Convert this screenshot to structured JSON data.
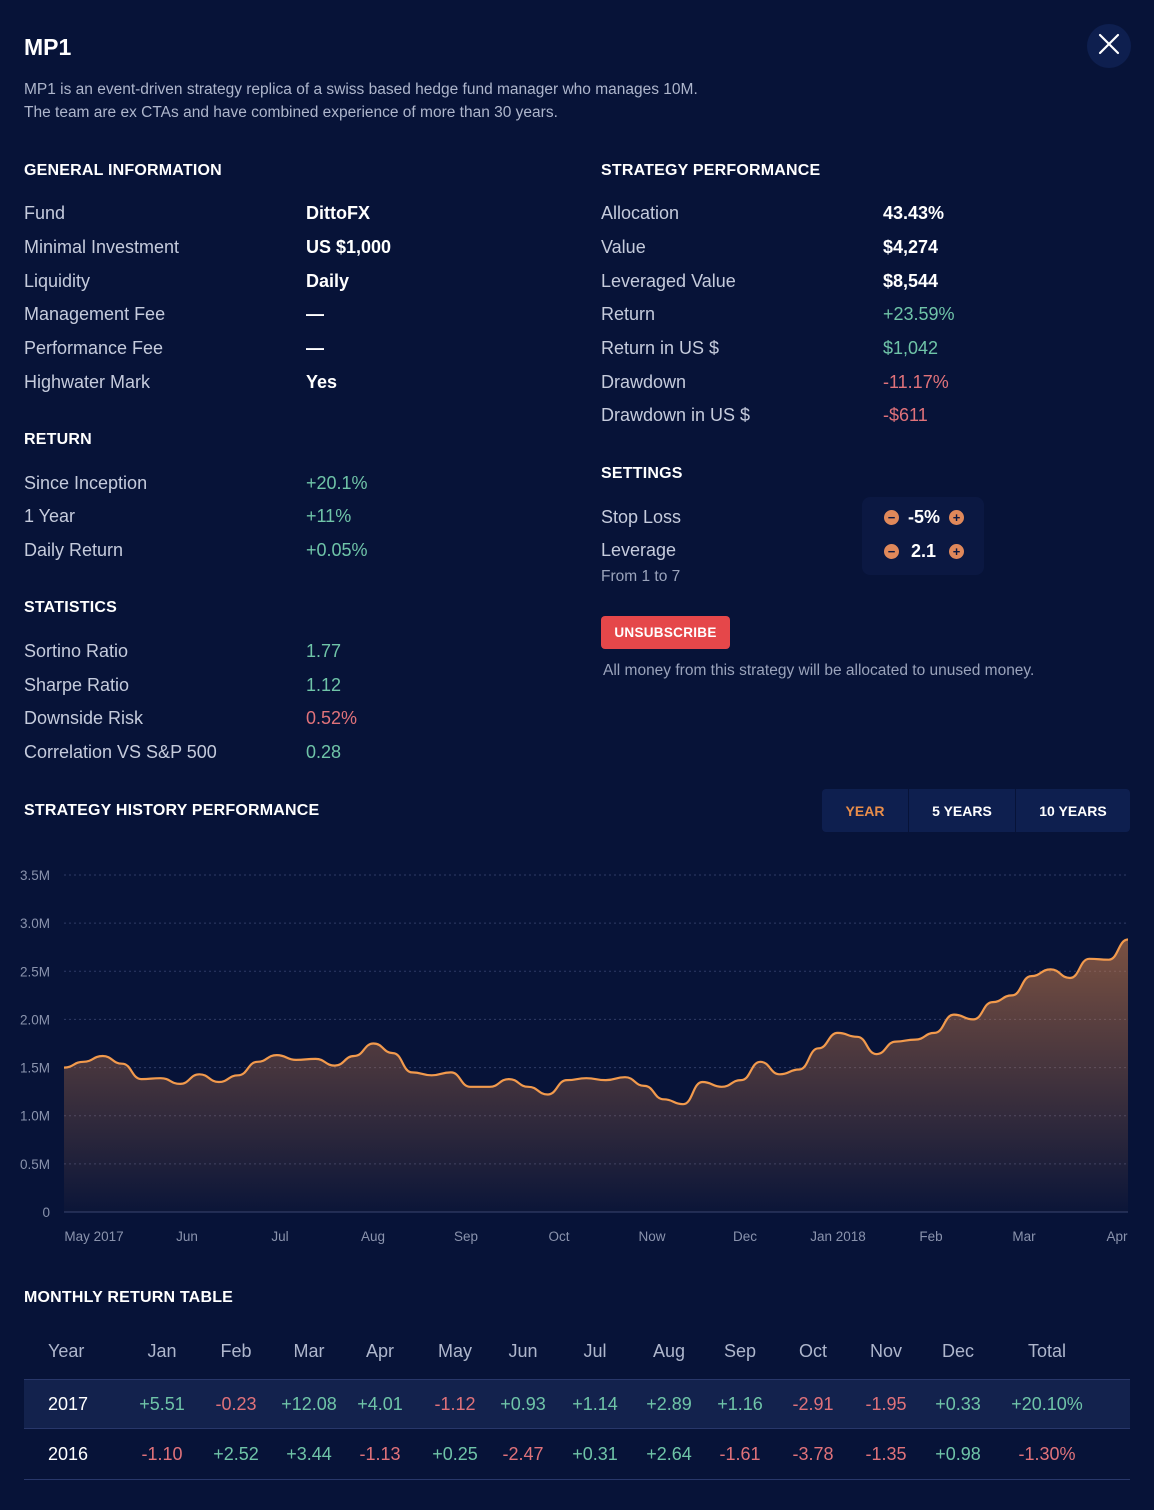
{
  "title": "MP1",
  "description": [
    "MP1 is an event-driven strategy replica of a swiss based hedge fund manager who manages 10M.",
    "The team are ex CTAs and have combined experience of more than 30 years."
  ],
  "general": {
    "heading": "GENERAL INFORMATION",
    "rows": [
      {
        "label": "Fund",
        "value": "DittoFX"
      },
      {
        "label": "Minimal Investment",
        "value": "US $1,000"
      },
      {
        "label": "Liquidity",
        "value": "Daily"
      },
      {
        "label": "Management Fee",
        "value": "—"
      },
      {
        "label": "Performance Fee",
        "value": "—"
      },
      {
        "label": "Highwater Mark",
        "value": "Yes"
      }
    ]
  },
  "return": {
    "heading": "RETURN",
    "rows": [
      {
        "label": "Since Inception",
        "value": "+20.1%"
      },
      {
        "label": "1 Year",
        "value": "+11%"
      },
      {
        "label": "Daily Return",
        "value": "+0.05%"
      }
    ]
  },
  "statistics": {
    "heading": "STATISTICS",
    "rows": [
      {
        "label": "Sortino Ratio",
        "value": "1.77"
      },
      {
        "label": "Sharpe Ratio",
        "value": "1.12"
      },
      {
        "label": "Downside Risk",
        "value": "0.52%"
      },
      {
        "label": "Correlation VS S&P 500",
        "value": "0.28"
      }
    ]
  },
  "performance": {
    "heading": "STRATEGY PERFORMANCE",
    "rows": [
      {
        "label": "Allocation",
        "value": "43.43%"
      },
      {
        "label": "Value",
        "value": "$4,274"
      },
      {
        "label": "Leveraged Value",
        "value": "$8,544"
      },
      {
        "label": "Return",
        "value": "+23.59%"
      },
      {
        "label": "Return in US $",
        "value": "$1,042"
      },
      {
        "label": "Drawdown",
        "value": "-11.17%"
      },
      {
        "label": "Drawdown in US $",
        "value": "-$611"
      }
    ]
  },
  "settings": {
    "heading": "SETTINGS",
    "stop_loss": {
      "label": "Stop Loss",
      "value": "-5%"
    },
    "leverage": {
      "label": "Leverage",
      "value": "2.1",
      "hint": "From 1 to 7"
    }
  },
  "unsubscribe": {
    "label": "UNSUBSCRIBE",
    "note": "All money from this strategy will be allocated to unused money."
  },
  "history": {
    "heading": "STRATEGY HISTORY PERFORMANCE",
    "tabs": [
      "YEAR",
      "5 YEARS",
      "10 YEARS"
    ],
    "active_tab": "YEAR"
  },
  "colors": {
    "background": "#071338",
    "positive": "#6fc4a8",
    "negative": "#e0727a",
    "accent": "#e88d4a",
    "danger": "#e5474a"
  },
  "icons": {
    "close": "close-icon",
    "minus": "minus-icon",
    "plus": "plus-icon"
  },
  "chart_data": {
    "type": "area",
    "title": "",
    "xlabel": "",
    "ylabel": "",
    "ylim": [
      0,
      3500000
    ],
    "yticks": [
      0,
      500000,
      1000000,
      1500000,
      2000000,
      2500000,
      3000000,
      3500000
    ],
    "ytick_labels": [
      "0",
      "0.5M",
      "1.0M",
      "1.5M",
      "2.0M",
      "2.5M",
      "3.0M",
      "3.5M"
    ],
    "xtick_labels": [
      "May 2017",
      "Jun",
      "Jul",
      "Aug",
      "Sep",
      "Oct",
      "Now",
      "Dec",
      "Jan 2018",
      "Feb",
      "Mar",
      "Apr"
    ],
    "grid": true,
    "x": [
      "May 2017",
      "",
      "",
      "",
      "",
      "Jun",
      "",
      "",
      "",
      "",
      "Jul",
      "",
      "",
      "",
      "",
      "Aug",
      "",
      "",
      "",
      "",
      "Sep",
      "",
      "",
      "",
      "",
      "Oct",
      "",
      "",
      "",
      "",
      "Now",
      "",
      "",
      "",
      "",
      "Dec",
      "",
      "",
      "",
      "",
      "Jan 2018",
      "",
      "",
      "",
      "",
      "Feb",
      "",
      "",
      "",
      "",
      "Mar",
      "",
      "",
      "",
      "",
      "Apr"
    ],
    "values": [
      1500000,
      1560000,
      1620000,
      1540000,
      1380000,
      1390000,
      1330000,
      1430000,
      1350000,
      1420000,
      1560000,
      1630000,
      1580000,
      1590000,
      1520000,
      1620000,
      1750000,
      1650000,
      1450000,
      1420000,
      1450000,
      1300000,
      1300000,
      1380000,
      1300000,
      1220000,
      1370000,
      1390000,
      1370000,
      1400000,
      1310000,
      1170000,
      1120000,
      1350000,
      1300000,
      1370000,
      1560000,
      1430000,
      1480000,
      1700000,
      1860000,
      1820000,
      1640000,
      1770000,
      1790000,
      1860000,
      2050000,
      2000000,
      2180000,
      2250000,
      2450000,
      2520000,
      2430000,
      2630000,
      2620000,
      2830000
    ]
  },
  "monthly": {
    "heading": "MONTHLY RETURN TABLE",
    "columns": [
      "Year",
      "Jan",
      "Feb",
      "Mar",
      "Apr",
      "May",
      "Jun",
      "Jul",
      "Aug",
      "Sep",
      "Oct",
      "Nov",
      "Dec",
      "Total"
    ],
    "rows": [
      {
        "year": "2017",
        "cells": [
          "+5.51",
          "-0.23",
          "+12.08",
          "+4.01",
          "-1.12",
          "+0.93",
          "+1.14",
          "+2.89",
          "+1.16",
          "-2.91",
          "-1.95",
          "+0.33",
          "+20.10%"
        ]
      },
      {
        "year": "2016",
        "cells": [
          "-1.10",
          "+2.52",
          "+3.44",
          "-1.13",
          "+0.25",
          "-2.47",
          "+0.31",
          "+2.64",
          "-1.61",
          "-3.78",
          "-1.35",
          "+0.98",
          "-1.30%"
        ]
      }
    ]
  }
}
